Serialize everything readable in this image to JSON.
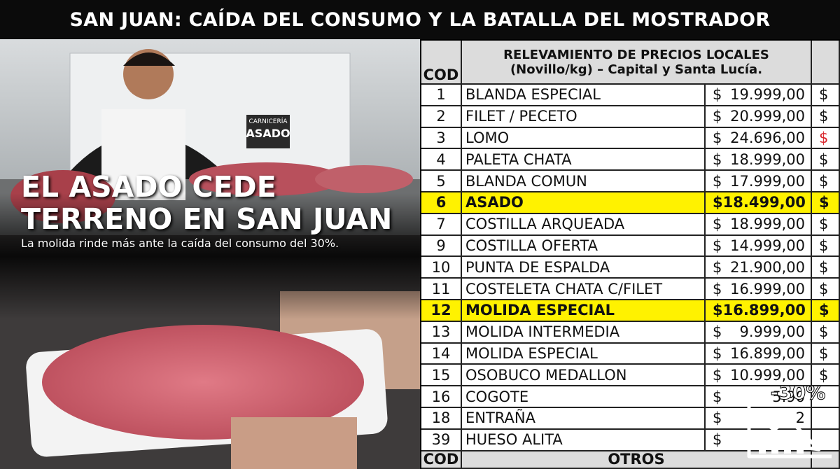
{
  "header": {
    "title": "SAN JUAN: CAÍDA DEL CONSUMO Y LA BATALLA DEL MOSTRADOR"
  },
  "photo": {
    "sign_top": "CARNICERÍA",
    "sign_main": "ASADO"
  },
  "overlay": {
    "headline": [
      "EL ASADO CEDE",
      "TERRENO EN SAN JUAN"
    ],
    "subtitle": "La molida rinde más ante la caída del consumo del 30%."
  },
  "table": {
    "header": {
      "cod": "COD",
      "title": [
        "RELEVAMIENTO DE PRECIOS LOCALES",
        "(Novillo/kg) – Capital y Santa Lucía."
      ]
    },
    "rows": [
      {
        "cod": "1",
        "name": "BLANDA ESPECIAL",
        "currency": "$",
        "price": "19.999,00",
        "extra": "$"
      },
      {
        "cod": "2",
        "name": "FILET / PECETO",
        "currency": "$",
        "price": "20.999,00",
        "extra": "$"
      },
      {
        "cod": "3",
        "name": "LOMO",
        "currency": "$",
        "price": "24.696,00",
        "extra": "$",
        "extra_color": "#d9262c"
      },
      {
        "cod": "4",
        "name": "PALETA CHATA",
        "currency": "$",
        "price": "18.999,00",
        "extra": "$"
      },
      {
        "cod": "5",
        "name": "BLANDA COMUN",
        "currency": "$",
        "price": "17.999,00",
        "extra": "$"
      },
      {
        "cod": "6",
        "name": "ASADO",
        "currency": "$",
        "price": "18.499,00",
        "extra": "$",
        "highlight": true
      },
      {
        "cod": "7",
        "name": "COSTILLA ARQUEADA",
        "currency": "$",
        "price": "18.999,00",
        "extra": "$"
      },
      {
        "cod": "9",
        "name": "COSTILLA OFERTA",
        "currency": "$",
        "price": "14.999,00",
        "extra": "$"
      },
      {
        "cod": "10",
        "name": "PUNTA DE ESPALDA",
        "currency": "$",
        "price": "21.900,00",
        "extra": "$"
      },
      {
        "cod": "11",
        "name": "COSTELETA CHATA C/FILET",
        "currency": "$",
        "price": "16.999,00",
        "extra": "$"
      },
      {
        "cod": "12",
        "name": "MOLIDA ESPECIAL",
        "currency": "$",
        "price": "16.899,00",
        "extra": "$",
        "highlight": true
      },
      {
        "cod": "13",
        "name": "MOLIDA INTERMEDIA",
        "currency": "$",
        "price": "9.999,00",
        "extra": "$"
      },
      {
        "cod": "14",
        "name": "MOLIDA ESPECIAL",
        "currency": "$",
        "price": "16.899,00",
        "extra": "$"
      },
      {
        "cod": "15",
        "name": "OSOBUCO MEDALLON",
        "currency": "$",
        "price": "10.999,00",
        "extra": "$"
      },
      {
        "cod": "16",
        "name": "COGOTE",
        "currency": "$",
        "price": "5.90"
      },
      {
        "cod": "18",
        "name": "ENTRAÑA",
        "currency": "$",
        "price": "2"
      },
      {
        "cod": "39",
        "name": "HUESO ALITA",
        "currency": "$"
      }
    ],
    "footer": {
      "cod": "COD",
      "label": "OTROS"
    }
  },
  "badge": {
    "label": "-30%"
  }
}
